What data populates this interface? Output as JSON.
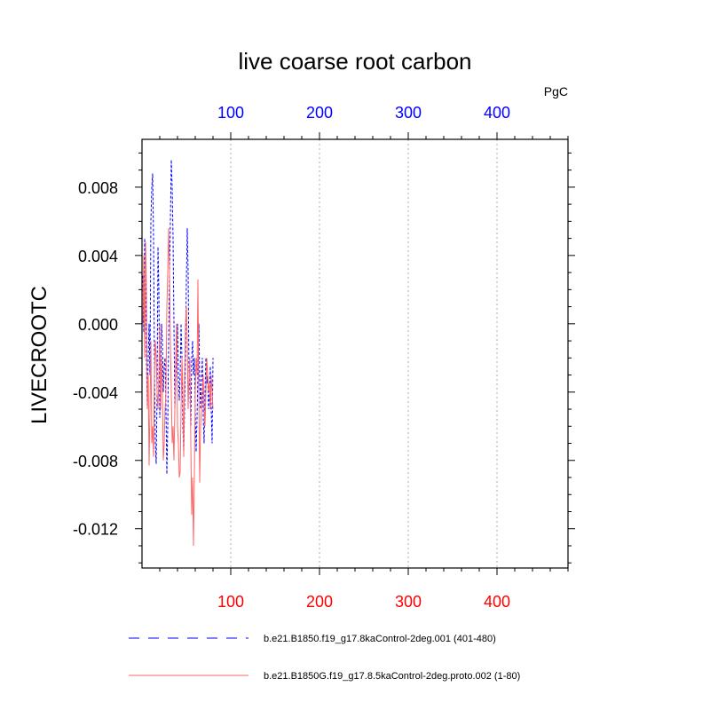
{
  "chart_data": {
    "type": "line",
    "title": "live coarse root carbon",
    "units": "PgC",
    "ylabel": "LIVECROOTC",
    "xlabel": "",
    "xlim": [
      0,
      480
    ],
    "ylim": [
      -0.0143,
      0.0108
    ],
    "x_ticks": [
      100,
      200,
      300,
      400
    ],
    "x_tick_labels": [
      "100",
      "200",
      "300",
      "400"
    ],
    "y_ticks": [
      0.008,
      0.004,
      0.0,
      -0.004,
      -0.008,
      -0.012
    ],
    "y_tick_labels": [
      "0.008",
      "0.004",
      "0.000",
      "-0.004",
      "-0.008",
      "-0.012"
    ],
    "top_axis_color": "#0000ff",
    "bottom_axis_color": "#ff0000",
    "grid": "vertical dotted at x ticks",
    "legend_position": "bottom",
    "series": [
      {
        "name": "b.e21.B1850.f19_g17.8kaControl-2deg.001 (401-480)",
        "color": "#0000ff",
        "style": "dashed",
        "x": [
          1,
          2,
          3,
          4,
          5,
          6,
          7,
          8,
          9,
          10,
          11,
          12,
          13,
          14,
          15,
          16,
          17,
          18,
          19,
          20,
          21,
          22,
          23,
          24,
          25,
          26,
          27,
          28,
          29,
          30,
          31,
          32,
          33,
          34,
          35,
          36,
          37,
          38,
          39,
          40,
          41,
          42,
          43,
          44,
          45,
          46,
          47,
          48,
          49,
          50,
          51,
          52,
          53,
          54,
          55,
          56,
          57,
          58,
          59,
          60,
          61,
          62,
          63,
          64,
          65,
          66,
          67,
          68,
          69,
          70,
          71,
          72,
          73,
          74,
          75,
          76,
          77,
          78,
          79,
          80
        ],
        "y": [
          0.0028,
          -0.0005,
          0.005,
          0.003,
          -0.002,
          -0.005,
          -0.002,
          0.0,
          -0.003,
          0.006,
          0.008,
          0.0088,
          0.005,
          -0.002,
          -0.007,
          -0.0082,
          -0.004,
          0.0045,
          0.002,
          -0.0055,
          -0.003,
          0.0,
          -0.001,
          -0.004,
          -0.0025,
          -0.002,
          -0.005,
          -0.0088,
          -0.006,
          -0.001,
          0.003,
          0.006,
          0.0096,
          0.008,
          0.005,
          0.0,
          -0.005,
          -0.003,
          -0.002,
          0.0,
          -0.003,
          -0.0045,
          -0.003,
          0.0,
          -0.002,
          -0.006,
          -0.0075,
          -0.005,
          -0.002,
          0.0025,
          0.0056,
          0.003,
          -0.003,
          -0.004,
          -0.006,
          -0.002,
          -0.001,
          -0.003,
          -0.002,
          -0.005,
          -0.0075,
          -0.0055,
          -0.003,
          0.0,
          -0.003,
          -0.005,
          -0.0035,
          -0.002,
          -0.0055,
          -0.007,
          -0.004,
          -0.002,
          -0.0035,
          -0.003,
          -0.005,
          -0.004,
          -0.0025,
          -0.005,
          -0.007,
          -0.002
        ]
      },
      {
        "name": "b.e21.B1850G.f19_g17.8.5kaControl-2deg.proto.002 (1-80)",
        "color": "#ff6666",
        "style": "solid",
        "x": [
          1,
          2,
          3,
          4,
          5,
          6,
          7,
          8,
          9,
          10,
          11,
          12,
          13,
          14,
          15,
          16,
          17,
          18,
          19,
          20,
          21,
          22,
          23,
          24,
          25,
          26,
          27,
          28,
          29,
          30,
          31,
          32,
          33,
          34,
          35,
          36,
          37,
          38,
          39,
          40,
          41,
          42,
          43,
          44,
          45,
          46,
          47,
          48,
          49,
          50,
          51,
          52,
          53,
          54,
          55,
          56,
          57,
          58,
          59,
          60,
          61,
          62,
          63,
          64,
          65,
          66,
          67,
          68,
          69,
          70,
          71,
          72,
          73,
          74,
          75,
          76,
          77,
          78,
          79,
          80
        ],
        "y": [
          0.0,
          0.004,
          -0.002,
          0.0048,
          0.002,
          -0.005,
          -0.003,
          -0.0083,
          -0.005,
          -0.001,
          -0.007,
          -0.006,
          -0.0078,
          -0.003,
          -0.001,
          -0.002,
          -0.004,
          -0.005,
          -0.003,
          0.0,
          -0.005,
          -0.002,
          -0.004,
          -0.008,
          -0.007,
          -0.005,
          -0.004,
          0.001,
          0.003,
          0.0056,
          0.003,
          -0.001,
          -0.004,
          -0.007,
          -0.006,
          -0.008,
          -0.005,
          -0.002,
          0.0,
          -0.006,
          -0.007,
          -0.009,
          -0.0087,
          -0.005,
          -0.002,
          -0.004,
          -0.0078,
          -0.003,
          0.0,
          0.001,
          -0.001,
          -0.005,
          -0.003,
          -0.002,
          -0.007,
          -0.0112,
          -0.009,
          -0.013,
          -0.009,
          -0.004,
          -0.002,
          -0.003,
          0.0026,
          -0.004,
          -0.0093,
          -0.006,
          -0.005,
          -0.004,
          -0.003,
          -0.005,
          -0.006,
          -0.004,
          -0.002,
          -0.003,
          -0.004,
          -0.0035,
          -0.005,
          -0.003,
          -0.004,
          -0.005
        ]
      }
    ]
  }
}
